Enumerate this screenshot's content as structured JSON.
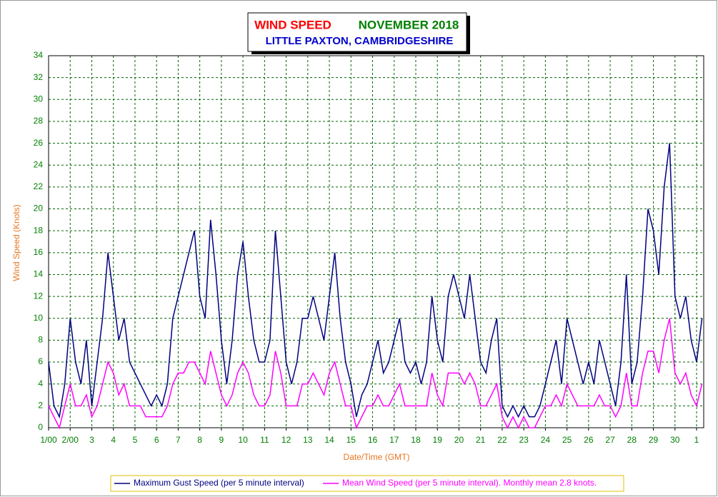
{
  "chart_data": {
    "type": "line",
    "title": "WIND SPEED",
    "period": "NOVEMBER 2018",
    "subtitle": "LITTLE PAXTON, CAMBRIDGESHIRE",
    "ylabel": "Wind Speed (Knots)",
    "xlabel": "Date/Time (GMT)",
    "x": [
      1,
      1.25,
      1.5,
      1.75,
      2,
      2.25,
      2.5,
      2.75,
      3,
      3.25,
      3.5,
      3.75,
      4,
      4.25,
      4.5,
      4.75,
      5,
      5.25,
      5.5,
      5.75,
      6,
      6.25,
      6.5,
      6.75,
      7,
      7.25,
      7.5,
      7.75,
      8,
      8.25,
      8.5,
      8.75,
      9,
      9.25,
      9.5,
      9.75,
      10,
      10.25,
      10.5,
      10.75,
      11,
      11.25,
      11.5,
      11.75,
      12,
      12.25,
      12.5,
      12.75,
      13,
      13.25,
      13.5,
      13.75,
      14,
      14.25,
      14.5,
      14.75,
      15,
      15.25,
      15.5,
      15.75,
      16,
      16.25,
      16.5,
      16.75,
      17,
      17.25,
      17.5,
      17.75,
      18,
      18.25,
      18.5,
      18.75,
      19,
      19.25,
      19.5,
      19.75,
      20,
      20.25,
      20.5,
      20.75,
      21,
      21.25,
      21.5,
      21.75,
      22,
      22.25,
      22.5,
      22.75,
      23,
      23.25,
      23.5,
      23.75,
      24,
      24.25,
      24.5,
      24.75,
      25,
      25.25,
      25.5,
      25.75,
      26,
      26.25,
      26.5,
      26.75,
      27,
      27.25,
      27.5,
      27.75,
      28,
      28.25,
      28.5,
      28.75,
      29,
      29.25,
      29.5,
      29.75,
      30,
      30.25,
      30.5,
      30.75,
      31,
      31.25
    ],
    "series": [
      {
        "name": "Maximum Gust Speed (per 5 minute interval)",
        "color": "#000080",
        "values": [
          6,
          2,
          1,
          4,
          10,
          6,
          4,
          8,
          2,
          6,
          10,
          16,
          12,
          8,
          10,
          6,
          5,
          4,
          3,
          2,
          3,
          2,
          4,
          10,
          12,
          14,
          16,
          18,
          12,
          10,
          19,
          14,
          8,
          4,
          8,
          14,
          17,
          12,
          8,
          6,
          6,
          8,
          18,
          12,
          6,
          4,
          6,
          10,
          10,
          12,
          10,
          8,
          12,
          16,
          10,
          6,
          4,
          1,
          3,
          4,
          6,
          8,
          5,
          6,
          8,
          10,
          6,
          5,
          6,
          4,
          6,
          12,
          8,
          6,
          12,
          14,
          12,
          10,
          14,
          10,
          6,
          5,
          8,
          10,
          2,
          1,
          2,
          1,
          2,
          1,
          1,
          2,
          4,
          6,
          8,
          4,
          10,
          8,
          6,
          4,
          6,
          4,
          8,
          6,
          4,
          2,
          6,
          14,
          4,
          6,
          12,
          20,
          18,
          14,
          22,
          26,
          12,
          10,
          12,
          8,
          6,
          10
        ]
      },
      {
        "name": "Mean Wind Speed (per 5 minute interval). Monthly mean 2.8 knots.",
        "color": "#ff00ff",
        "values": [
          2,
          1,
          0,
          2,
          4,
          2,
          2,
          3,
          1,
          2,
          4,
          6,
          5,
          3,
          4,
          2,
          2,
          2,
          1,
          1,
          1,
          1,
          2,
          4,
          5,
          5,
          6,
          6,
          5,
          4,
          7,
          5,
          3,
          2,
          3,
          5,
          6,
          5,
          3,
          2,
          2,
          3,
          7,
          5,
          2,
          2,
          2,
          4,
          4,
          5,
          4,
          3,
          5,
          6,
          4,
          2,
          2,
          0,
          1,
          2,
          2,
          3,
          2,
          2,
          3,
          4,
          2,
          2,
          2,
          2,
          2,
          5,
          3,
          2,
          5,
          5,
          5,
          4,
          5,
          4,
          2,
          2,
          3,
          4,
          1,
          0,
          1,
          0,
          1,
          0,
          0,
          1,
          2,
          2,
          3,
          2,
          4,
          3,
          2,
          2,
          2,
          2,
          3,
          2,
          2,
          1,
          2,
          5,
          2,
          2,
          5,
          7,
          7,
          5,
          8,
          10,
          5,
          4,
          5,
          3,
          2,
          4
        ]
      }
    ],
    "xlim": [
      1,
      31.33
    ],
    "xticks": [
      {
        "value": 1,
        "label": "1/00"
      },
      {
        "value": 2,
        "label": "2/00"
      },
      3,
      4,
      5,
      6,
      7,
      8,
      9,
      10,
      11,
      12,
      13,
      14,
      15,
      16,
      17,
      18,
      19,
      20,
      21,
      22,
      23,
      24,
      25,
      26,
      27,
      28,
      29,
      30,
      {
        "value": 31,
        "label": "1"
      }
    ],
    "ylim": [
      0,
      34
    ],
    "yticks": [
      0,
      2,
      4,
      6,
      8,
      10,
      12,
      14,
      16,
      18,
      20,
      22,
      24,
      26,
      28,
      30,
      32,
      34
    ],
    "grid": true
  }
}
